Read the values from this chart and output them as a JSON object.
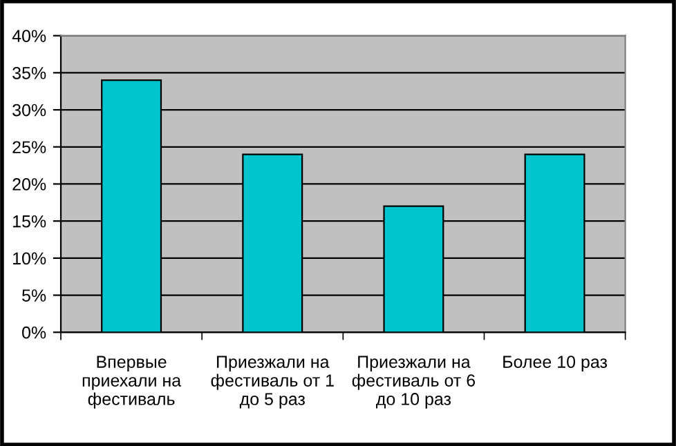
{
  "chart_data": {
    "type": "bar",
    "categories": [
      "Впервые\nприехали на\nфестиваль",
      "Приезжали на\nфестиваль от 1\nдо 5 раз",
      "Приезжали на\nфестиваль от 6\nдо 10 раз",
      "Более 10 раз"
    ],
    "values": [
      34,
      24,
      17,
      24
    ],
    "color": "#00c4cc",
    "ylim": [
      0,
      40
    ],
    "yticks": [
      {
        "value": 0,
        "label": "0%"
      },
      {
        "value": 5,
        "label": "5%"
      },
      {
        "value": 10,
        "label": "10%"
      },
      {
        "value": 15,
        "label": "15%"
      },
      {
        "value": 20,
        "label": "20%"
      },
      {
        "value": 25,
        "label": "25%"
      },
      {
        "value": 30,
        "label": "30%"
      },
      {
        "value": 35,
        "label": "35%"
      },
      {
        "value": 40,
        "label": "40%"
      }
    ],
    "grid": "y"
  }
}
